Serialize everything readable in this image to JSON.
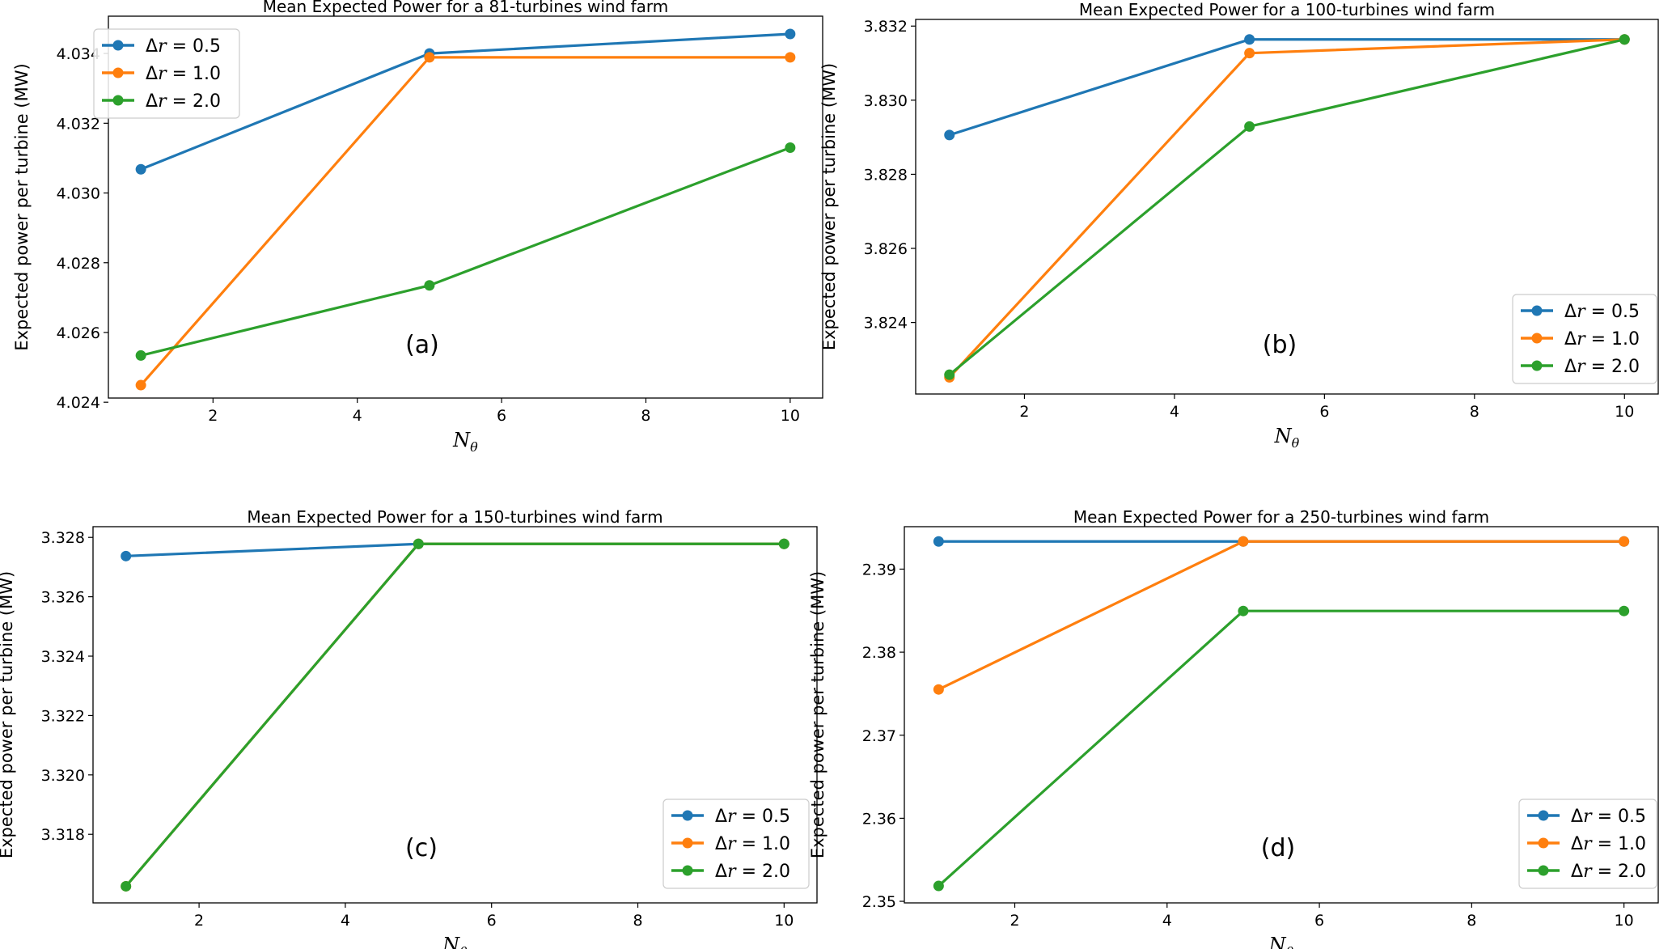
{
  "chart_data": [
    {
      "type": "line",
      "title": "Mean Expected Power for a 81-turbines wind farm",
      "xlabel": "N",
      "xlabel_sub": "θ",
      "ylabel": "Expected power per turbine (MW)",
      "annotation": "(a)",
      "x": [
        1,
        5,
        10
      ],
      "xticks": [
        2,
        4,
        6,
        8,
        10
      ],
      "yticks": [
        4.024,
        4.026,
        4.028,
        4.03,
        4.032,
        4.034
      ],
      "ytick_labels": [
        "4.024",
        "4.026",
        "4.028",
        "4.030",
        "4.032",
        "4.034"
      ],
      "xlim": [
        0.55,
        10.45
      ],
      "ylim": [
        4.02412,
        4.03507
      ],
      "legend": "top-left",
      "series": [
        {
          "name": "Δr = 0.5",
          "label_prefix": "Δ",
          "label_var": "r",
          "label_value": " = 0.5",
          "color": "#1f77b4",
          "values": [
            4.03068,
            4.034,
            4.03456
          ]
        },
        {
          "name": "Δr = 1.0",
          "label_prefix": "Δ",
          "label_var": "r",
          "label_value": " = 1.0",
          "color": "#ff7f0e",
          "values": [
            4.02449,
            4.03389,
            4.03389
          ]
        },
        {
          "name": "Δr = 2.0",
          "label_prefix": "Δ",
          "label_var": "r",
          "label_value": " = 2.0",
          "color": "#2ca02c",
          "values": [
            4.02534,
            4.02735,
            4.0313
          ]
        }
      ]
    },
    {
      "type": "line",
      "title": "Mean Expected Power for a 100-turbines wind farm",
      "xlabel": "N",
      "xlabel_sub": "θ",
      "ylabel": "Expected power per turbine (MW)",
      "annotation": "(b)",
      "x": [
        1,
        5,
        10
      ],
      "xticks": [
        2,
        4,
        6,
        8,
        10
      ],
      "yticks": [
        3.824,
        3.826,
        3.828,
        3.83,
        3.832
      ],
      "ytick_labels": [
        "3.824",
        "3.826",
        "3.828",
        "3.830",
        "3.832"
      ],
      "xlim": [
        0.55,
        10.45
      ],
      "ylim": [
        3.82207,
        3.83218
      ],
      "legend": "bottom-right",
      "series": [
        {
          "name": "Δr = 0.5",
          "label_prefix": "Δ",
          "label_var": "r",
          "label_value": " = 0.5",
          "color": "#1f77b4",
          "values": [
            3.82906,
            3.83164,
            3.83164
          ]
        },
        {
          "name": "Δr = 1.0",
          "label_prefix": "Δ",
          "label_var": "r",
          "label_value": " = 1.0",
          "color": "#ff7f0e",
          "values": [
            3.82252,
            3.83127,
            3.83164
          ]
        },
        {
          "name": "Δr = 2.0",
          "label_prefix": "Δ",
          "label_var": "r",
          "label_value": " = 2.0",
          "color": "#2ca02c",
          "values": [
            3.82259,
            3.82929,
            3.83164
          ]
        }
      ]
    },
    {
      "type": "line",
      "title": "Mean Expected Power for a 150-turbines wind farm",
      "xlabel": "N",
      "xlabel_sub": "θ",
      "ylabel": "Expected power per turbine (MW)",
      "annotation": "(c)",
      "x": [
        1,
        5,
        10
      ],
      "xticks": [
        2,
        4,
        6,
        8,
        10
      ],
      "yticks": [
        3.318,
        3.32,
        3.322,
        3.324,
        3.326,
        3.328
      ],
      "ytick_labels": [
        "3.318",
        "3.320",
        "3.322",
        "3.324",
        "3.326",
        "3.328"
      ],
      "xlim": [
        0.55,
        10.45
      ],
      "ylim": [
        3.31569,
        3.32836
      ],
      "legend": "bottom-right",
      "series": [
        {
          "name": "Δr = 0.5",
          "label_prefix": "Δ",
          "label_var": "r",
          "label_value": " = 0.5",
          "color": "#1f77b4",
          "values": [
            3.32737,
            3.32778,
            3.32778
          ]
        },
        {
          "name": "Δr = 1.0",
          "label_prefix": "Δ",
          "label_var": "r",
          "label_value": " = 1.0",
          "color": "#ff7f0e",
          "values": [
            3.31625,
            3.32778,
            3.32778
          ]
        },
        {
          "name": "Δr = 2.0",
          "label_prefix": "Δ",
          "label_var": "r",
          "label_value": " = 2.0",
          "color": "#2ca02c",
          "values": [
            3.31625,
            3.32778,
            3.32778
          ]
        }
      ]
    },
    {
      "type": "line",
      "title": "Mean Expected Power for a 250-turbines wind farm",
      "xlabel": "N",
      "xlabel_sub": "θ",
      "ylabel": "Expected power per turbine (MW)",
      "annotation": "(d)",
      "x": [
        1,
        5,
        10
      ],
      "xticks": [
        2,
        4,
        6,
        8,
        10
      ],
      "yticks": [
        2.35,
        2.36,
        2.37,
        2.38,
        2.39
      ],
      "ytick_labels": [
        "2.35",
        "2.36",
        "2.37",
        "2.38",
        "2.39"
      ],
      "xlim": [
        0.55,
        10.45
      ],
      "ylim": [
        2.34981,
        2.39511
      ],
      "legend": "bottom-right",
      "series": [
        {
          "name": "Δr = 0.5",
          "label_prefix": "Δ",
          "label_var": "r",
          "label_value": " = 0.5",
          "color": "#1f77b4",
          "values": [
            2.39333,
            2.39333,
            2.39333
          ]
        },
        {
          "name": "Δr = 1.0",
          "label_prefix": "Δ",
          "label_var": "r",
          "label_value": " = 1.0",
          "color": "#ff7f0e",
          "values": [
            2.37551,
            2.39333,
            2.39333
          ]
        },
        {
          "name": "Δr = 2.0",
          "label_prefix": "Δ",
          "label_var": "r",
          "label_value": " = 2.0",
          "color": "#2ca02c",
          "values": [
            2.35185,
            2.38496,
            2.38496
          ]
        }
      ]
    }
  ]
}
